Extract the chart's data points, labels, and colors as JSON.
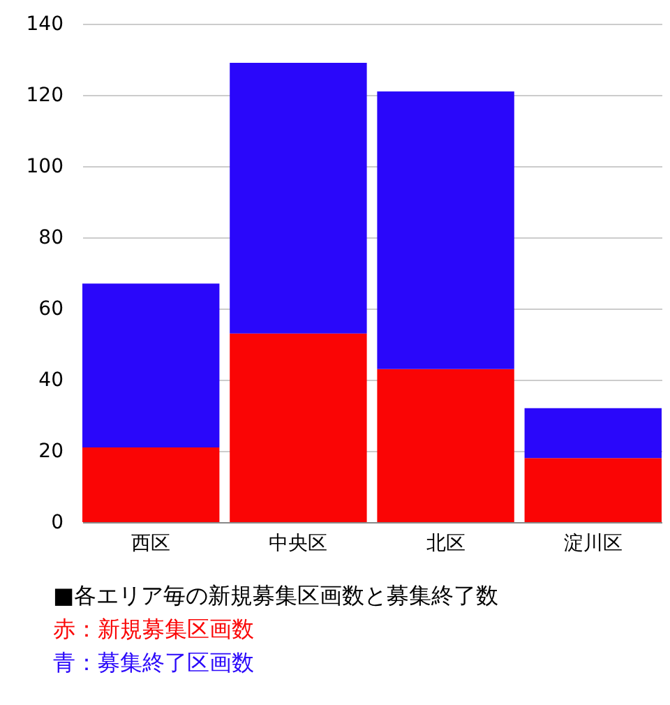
{
  "chart_data": {
    "type": "bar",
    "stacked": true,
    "categories": [
      "西区",
      "中央区",
      "北区",
      "淀川区"
    ],
    "series": [
      {
        "name": "赤：新規募集区画数",
        "color": "#fa0505",
        "values": [
          21,
          53,
          43,
          18
        ]
      },
      {
        "name": "青：募集終了区画数",
        "color": "#2a07fa",
        "values": [
          46,
          76,
          78,
          14
        ]
      }
    ],
    "ylim": [
      0,
      140
    ],
    "yticks": [
      0,
      20,
      40,
      60,
      80,
      100,
      120,
      140
    ],
    "grid": "y",
    "legend": "bottom",
    "annotations": [
      "■各エリア毎の新規募集区画数と募集終了数"
    ]
  }
}
